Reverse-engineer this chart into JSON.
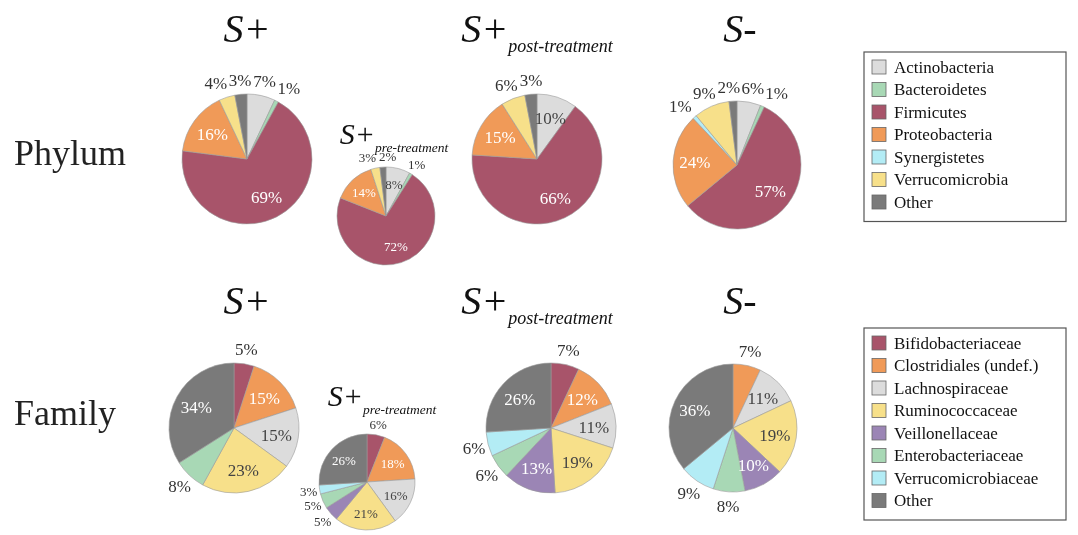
{
  "chart_data": [
    {
      "type": "pie",
      "title": "Phylum",
      "legend": "right",
      "categories": [
        "Actinobacteria",
        "Bacteroidetes",
        "Firmicutes",
        "Proteobacteria",
        "Synergistetes",
        "Verrucomicrobia",
        "Other"
      ],
      "colors": [
        "#dcdcdc",
        "#a8d8b5",
        "#a8546a",
        "#f09a58",
        "#b3ecf5",
        "#f7e08a",
        "#7a7a7a"
      ],
      "series": [
        {
          "name": "S+",
          "values": [
            7,
            1,
            69,
            16,
            null,
            4,
            3
          ],
          "value_labels": [
            "7%",
            "1%",
            "69%",
            "16%",
            null,
            "4%",
            "3%"
          ]
        },
        {
          "name": "S+$_{pre-treatment}$",
          "values": [
            8,
            1,
            72,
            14,
            null,
            3,
            2
          ],
          "value_labels": [
            "8%",
            "1%",
            "72%",
            "14%",
            null,
            "3%",
            "2%"
          ]
        },
        {
          "name": "S+$_{post-treatment}$",
          "values": [
            10,
            null,
            66,
            15,
            null,
            6,
            3
          ],
          "value_labels": [
            "10%",
            null,
            "66%",
            "15%",
            null,
            "6%",
            "3%"
          ]
        },
        {
          "name": "S-",
          "values": [
            6,
            1,
            57,
            24,
            1,
            9,
            2
          ],
          "value_labels": [
            "6%",
            "1%",
            "57%",
            "24%",
            "1%",
            "9%",
            "2%"
          ]
        }
      ]
    },
    {
      "type": "pie",
      "title": "Family",
      "legend": "right",
      "categories": [
        "Bifidobacteriaceae",
        "Clostridiales (undef.)",
        "Lachnospiraceae",
        "Ruminococcaceae",
        "Veillonellaceae",
        "Enterobacteriaceae",
        "Verrucomicrobiaceae",
        "Other"
      ],
      "colors": [
        "#a8546a",
        "#f09a58",
        "#dcdcdc",
        "#f7e08a",
        "#9b85b5",
        "#a8d8b5",
        "#b3ecf5",
        "#7a7a7a"
      ],
      "series": [
        {
          "name": "S+",
          "values": [
            5,
            15,
            15,
            23,
            null,
            8,
            null,
            34
          ],
          "value_labels": [
            "5%",
            "15%",
            "15%",
            "23%",
            null,
            "8%",
            null,
            "34%"
          ]
        },
        {
          "name": "S+$_{pre-treatment}$",
          "values": [
            6,
            18,
            16,
            21,
            5,
            5,
            3,
            26
          ],
          "value_labels": [
            "6%",
            "18%",
            "16%",
            "21%",
            "5%",
            "5%",
            "3%",
            "26%"
          ]
        },
        {
          "name": "S+$_{post-treatment}$",
          "values": [
            7,
            12,
            11,
            19,
            13,
            6,
            6,
            26
          ],
          "value_labels": [
            "7%",
            "12%",
            "11%",
            "19%",
            "13%",
            "6%",
            "6%",
            "26%"
          ]
        },
        {
          "name": "S-",
          "values": [
            null,
            7,
            11,
            19,
            10,
            8,
            9,
            36
          ],
          "value_labels": [
            null,
            "7%",
            "11%",
            "19%",
            "10%",
            "8%",
            "9%",
            "36%"
          ]
        }
      ]
    }
  ]
}
